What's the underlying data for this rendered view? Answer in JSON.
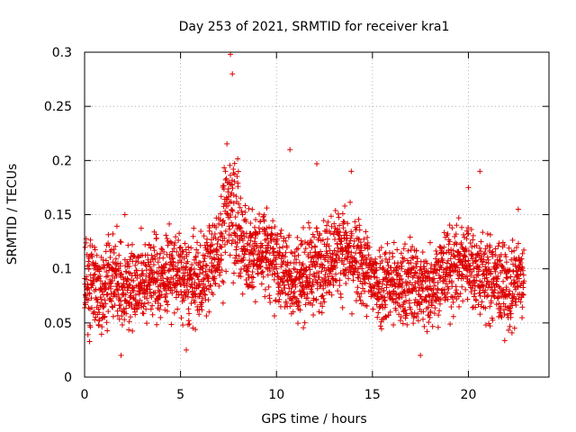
{
  "chart_data": {
    "type": "scatter",
    "title": "Day 253 of 2021, SRMTID for receiver kra1",
    "xlabel": "GPS time / hours",
    "ylabel": "SRMTID / TECUs",
    "xlim": [
      0,
      24.2
    ],
    "ylim": [
      0,
      0.3
    ],
    "x_ticks": [
      0,
      5,
      10,
      15,
      20
    ],
    "x_tick_labels": [
      "0",
      "5",
      "10",
      "15",
      "20"
    ],
    "y_ticks": [
      0,
      0.05,
      0.1,
      0.15,
      0.2,
      0.25,
      0.3
    ],
    "y_tick_labels": [
      "0",
      "0.05",
      "0.1",
      "0.15",
      "0.2",
      "0.25",
      "0.3"
    ],
    "grid": true,
    "marker": "+",
    "series_color": "#dd0000",
    "sampling_interval_hours": 0.0083,
    "data_span_hours": [
      0,
      22.9
    ],
    "typical_range": [
      0.05,
      0.13
    ],
    "series": [
      {
        "name": "kra1",
        "x": [
          0.0,
          0.4,
          0.8,
          1.2,
          1.6,
          2.0,
          2.4,
          2.8,
          3.2,
          3.6,
          4.0,
          4.4,
          4.8,
          5.2,
          5.6,
          6.0,
          6.4,
          6.8,
          7.2,
          7.4,
          7.6,
          7.8,
          8.0,
          8.2,
          8.6,
          9.0,
          9.4,
          9.8,
          10.2,
          10.6,
          11.0,
          11.4,
          11.8,
          12.2,
          12.6,
          13.0,
          13.4,
          13.8,
          14.2,
          14.6,
          15.0,
          15.4,
          15.8,
          16.2,
          16.6,
          17.0,
          17.4,
          17.8,
          18.2,
          18.6,
          19.0,
          19.4,
          19.8,
          20.2,
          20.6,
          21.0,
          21.4,
          21.8,
          22.2,
          22.6,
          1.9,
          2.1,
          5.3,
          7.6,
          7.7,
          10.7,
          12.1,
          13.9,
          17.5,
          20.0,
          20.6,
          22.6
        ],
        "y": [
          0.08,
          0.09,
          0.085,
          0.09,
          0.095,
          0.08,
          0.09,
          0.085,
          0.09,
          0.095,
          0.09,
          0.1,
          0.095,
          0.09,
          0.085,
          0.09,
          0.1,
          0.11,
          0.13,
          0.15,
          0.17,
          0.16,
          0.14,
          0.12,
          0.11,
          0.115,
          0.12,
          0.105,
          0.1,
          0.095,
          0.09,
          0.095,
          0.1,
          0.1,
          0.11,
          0.115,
          0.12,
          0.11,
          0.105,
          0.1,
          0.09,
          0.085,
          0.09,
          0.085,
          0.08,
          0.09,
          0.085,
          0.08,
          0.09,
          0.095,
          0.1,
          0.1,
          0.11,
          0.1,
          0.095,
          0.09,
          0.09,
          0.085,
          0.08,
          0.09,
          0.02,
          0.15,
          0.025,
          0.298,
          0.28,
          0.21,
          0.197,
          0.19,
          0.02,
          0.175,
          0.19,
          0.155
        ]
      }
    ]
  }
}
